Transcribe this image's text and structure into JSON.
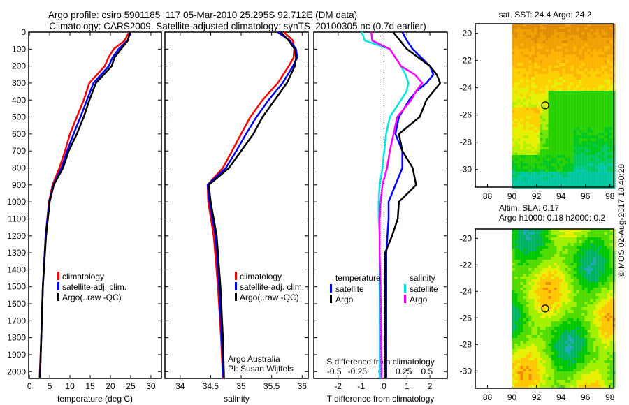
{
  "title": {
    "line1": "Argo profile: csiro 5901185_117 05-Mar-2010 25.295S 92.712E (DM data)",
    "line2": "Climatology: CARS2009. Satellite-adjusted climatology: synTS_20100305.nc (0.7d earlier)"
  },
  "colors": {
    "climatology": "#ff0000",
    "satellite": "#0000ff",
    "argo": "#000000",
    "sal_satellite": "#00e5e5",
    "sal_argo": "#ff00ff"
  },
  "chart_data": [
    {
      "type": "line",
      "id": "temperature",
      "xlabel": "temperature (deg C)",
      "ylabel": "",
      "xlim": [
        -0.2,
        32.6
      ],
      "ylim": [
        2040,
        0
      ],
      "xticks": [
        0,
        5,
        10,
        15,
        20,
        25,
        30
      ],
      "yticks": [
        0,
        100,
        200,
        300,
        400,
        500,
        600,
        700,
        800,
        900,
        1000,
        1100,
        1200,
        1300,
        1400,
        1500,
        1600,
        1700,
        1800,
        1900,
        2000
      ],
      "depth": [
        0,
        50,
        100,
        150,
        200,
        300,
        400,
        500,
        600,
        700,
        800,
        900,
        1000,
        1200,
        1500,
        1800,
        2040
      ],
      "series": [
        {
          "name": "climatology",
          "color": "climatology",
          "values": [
            24.6,
            23.5,
            20.8,
            19.5,
            18.6,
            14.8,
            13.4,
            11.7,
            10.0,
            8.8,
            7.4,
            5.7,
            4.8,
            4.0,
            3.3,
            2.9,
            2.5
          ]
        },
        {
          "name": "satellite-adj. clim.",
          "color": "satellite",
          "values": [
            25.0,
            24.2,
            22.0,
            20.5,
            19.6,
            15.8,
            14.2,
            12.6,
            10.9,
            9.3,
            7.9,
            5.9,
            4.9,
            4.0,
            3.3,
            2.9,
            2.6
          ]
        },
        {
          "name": "Argo(..raw -QC)",
          "color": "argo",
          "values": [
            24.8,
            24.3,
            22.6,
            21.0,
            20.3,
            16.4,
            14.8,
            13.4,
            11.7,
            9.7,
            8.3,
            6.0,
            5.0,
            4.1,
            3.3,
            2.9,
            2.6
          ]
        }
      ],
      "legend": [
        "climatology",
        "satellite-adj. clim.",
        "Argo(..raw -QC)"
      ]
    },
    {
      "type": "line",
      "id": "salinity",
      "xlabel": "salinity",
      "xlim": [
        33.75,
        36.1
      ],
      "ylim": [
        2040,
        0
      ],
      "xticks": [
        34,
        34.5,
        35,
        35.5,
        36
      ],
      "depth": [
        0,
        50,
        100,
        150,
        200,
        300,
        400,
        500,
        600,
        700,
        800,
        900,
        1000,
        1200,
        1500,
        1800,
        2040
      ],
      "series": [
        {
          "name": "climatology",
          "color": "climatology",
          "values": [
            35.7,
            35.85,
            35.87,
            35.86,
            35.78,
            35.6,
            35.35,
            35.15,
            35.0,
            34.85,
            34.7,
            34.45,
            34.46,
            34.55,
            34.62,
            34.67,
            34.7
          ]
        },
        {
          "name": "satellite-adj. clim.",
          "color": "satellite",
          "values": [
            35.6,
            35.8,
            35.9,
            35.92,
            35.85,
            35.68,
            35.45,
            35.25,
            35.08,
            34.92,
            34.75,
            34.45,
            34.48,
            34.58,
            34.64,
            34.68,
            34.71
          ]
        },
        {
          "name": "Argo(..raw -QC)",
          "color": "argo",
          "values": [
            35.65,
            35.78,
            35.88,
            35.9,
            35.88,
            35.75,
            35.55,
            35.35,
            35.2,
            35.0,
            34.8,
            34.47,
            34.5,
            34.6,
            34.66,
            34.7,
            34.72
          ]
        }
      ],
      "legend": [
        "climatology",
        "satellite-adj. clim.",
        "Argo(..raw -QC)"
      ],
      "annotation": [
        "Argo Australia",
        "PI: Susan Wijffels"
      ]
    },
    {
      "type": "line",
      "id": "differences",
      "xlabel": "T difference from climatology",
      "x2label": "S difference from climatology",
      "xlim": [
        -3.06,
        2.76
      ],
      "x2lim": [
        -0.72,
        0.72
      ],
      "ylim": [
        2040,
        0
      ],
      "xticks": [
        -2,
        -1,
        0,
        1,
        2
      ],
      "x2ticks": [
        -0.5,
        -0.25,
        0,
        0.25,
        0.5
      ],
      "x2ticklabels": [
        "-0.5",
        "-0.25",
        "0",
        "0.25",
        "0.5"
      ],
      "depth": [
        0,
        50,
        100,
        200,
        250,
        300,
        350,
        400,
        500,
        600,
        700,
        800,
        900,
        1000,
        1100,
        1200,
        1300,
        1500,
        2040
      ],
      "series": [
        {
          "name": "temperature satellite",
          "axis": "T",
          "color": "satellite",
          "values": [
            0.8,
            1.0,
            1.25,
            2.0,
            2.15,
            1.85,
            1.4,
            1.1,
            0.65,
            0.5,
            0.8,
            0.8,
            0.5,
            0.2,
            0.2,
            0.15,
            0.1,
            0.1,
            0.1
          ]
        },
        {
          "name": "temperature Argo",
          "axis": "T",
          "color": "argo",
          "values": [
            0.4,
            0.7,
            1.0,
            2.0,
            2.3,
            2.45,
            2.15,
            1.85,
            1.55,
            0.65,
            0.8,
            1.25,
            1.4,
            0.65,
            0.6,
            0.35,
            0.05,
            0.05,
            0.06
          ]
        },
        {
          "name": "salinity satellite",
          "axis": "S",
          "color": "sal_satellite",
          "values": [
            -0.2,
            -0.17,
            0.1,
            0.22,
            0.27,
            0.3,
            0.28,
            0.22,
            0.1,
            0.06,
            0.04,
            0.02,
            -0.01,
            -0.02,
            -0.02,
            -0.01,
            -0.01,
            -0.01,
            -0.01
          ]
        },
        {
          "name": "salinity Argo",
          "axis": "S",
          "color": "sal_argo",
          "values": [
            -0.1,
            -0.09,
            0.1,
            0.22,
            0.37,
            0.45,
            0.38,
            0.33,
            0.18,
            0.14,
            0.1,
            0.07,
            0.02,
            0.0,
            -0.01,
            -0.01,
            -0.01,
            0.0,
            0.01
          ]
        }
      ],
      "legend_headers": [
        "temperature",
        "salinity"
      ],
      "legend": {
        "temperature": [
          "satellite",
          "Argo"
        ],
        "salinity": [
          "satellite",
          "Argo"
        ]
      }
    },
    {
      "type": "heatmap",
      "id": "sst-map",
      "title": "sat. SST: 24.4 Argo: 24.2",
      "xlim": [
        87,
        98.3
      ],
      "ylim": [
        -31.3,
        -19.3
      ],
      "xticks": [
        88,
        90,
        92,
        94,
        96,
        98
      ],
      "yticks": [
        -20,
        -22,
        -24,
        -26,
        -28,
        -30
      ],
      "data_lon_start": 90,
      "marker": {
        "lon": 92.712,
        "lat": -25.295
      }
    },
    {
      "type": "heatmap",
      "id": "sla-map",
      "title": [
        "Altim. SLA: 0.17",
        "Argo h1000: 0.18 h2000: 0.2"
      ],
      "xlim": [
        87,
        98.3
      ],
      "ylim": [
        -31.3,
        -19.3
      ],
      "xticks": [
        88,
        90,
        92,
        94,
        96,
        98
      ],
      "yticks": [
        -20,
        -22,
        -24,
        -26,
        -28,
        -30
      ],
      "data_lon_start": 90,
      "marker": {
        "lon": 92.712,
        "lat": -25.295
      }
    }
  ],
  "credit": "©IMOS 02-Aug-2017 18:40:28"
}
